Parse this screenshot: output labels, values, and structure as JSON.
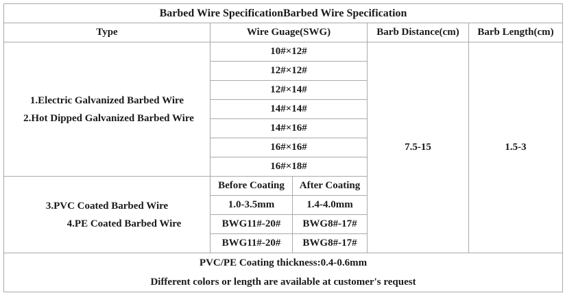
{
  "table": {
    "title": "Barbed Wire SpecificationBarbed Wire Specification",
    "headers": {
      "type": "Type",
      "gauge": "Wire Guage(SWG)",
      "barb_distance": "Barb Distance(cm)",
      "barb_length": "Barb Length(cm)"
    },
    "group1": {
      "types": [
        "1.Electric Galvanized Barbed Wire",
        "2.Hot Dipped Galvanized Barbed Wire"
      ],
      "gauges": [
        "10#×12#",
        "12#×12#",
        "12#×14#",
        "14#×14#",
        "14#×16#",
        "16#×16#",
        "16#×18#"
      ]
    },
    "group2": {
      "types": [
        "3.PVC Coated Barbed Wire",
        "4.PE Coated Barbed Wire"
      ],
      "sub_headers": [
        "Before Coating",
        "After Coating"
      ],
      "rows": [
        [
          "1.0-3.5mm",
          "1.4-4.0mm"
        ],
        [
          "BWG11#-20#",
          "BWG8#-17#"
        ],
        [
          "BWG11#-20#",
          "BWG8#-17#"
        ]
      ]
    },
    "barb_distance_value": "7.5-15",
    "barb_length_value": "1.5-3",
    "footer": [
      "PVC/PE Coating thickness:0.4-0.6mm",
      "Different colors or length are available at customer's request"
    ]
  }
}
